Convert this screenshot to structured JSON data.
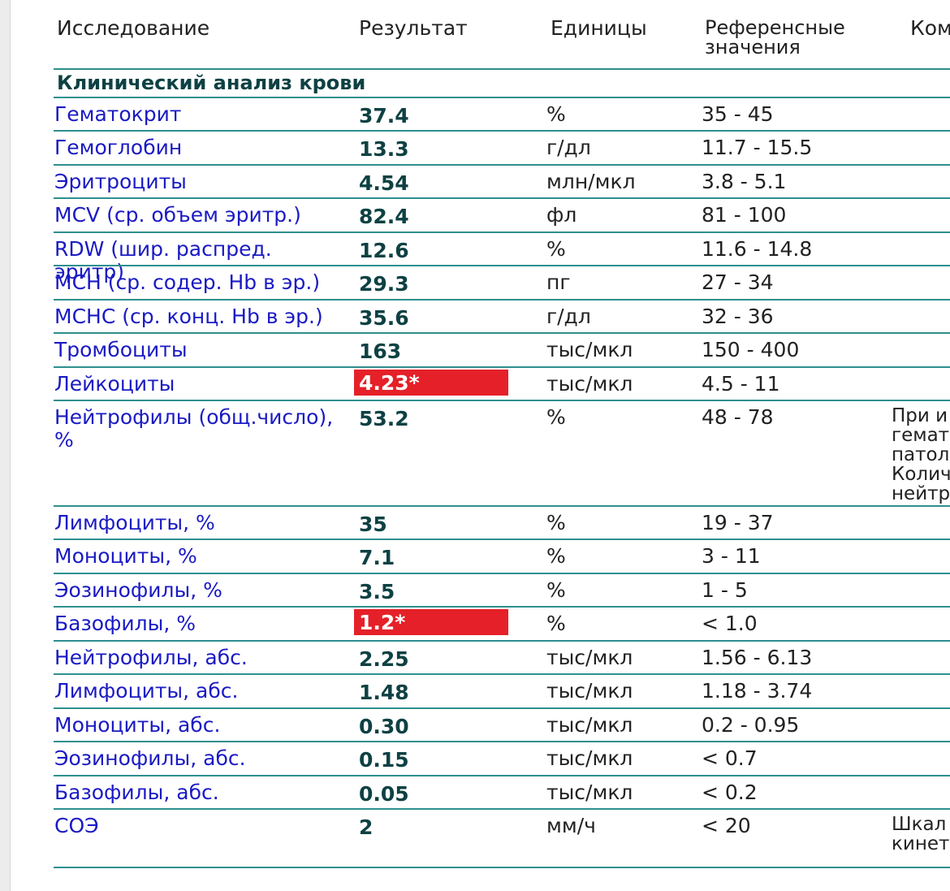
{
  "columns": {
    "study": "Исследование",
    "result": "Результат",
    "units": "Единицы",
    "reference_line1": "Референсные",
    "reference_line2": "значения",
    "comment": "Ком"
  },
  "section_title": "Клинический анализ крови",
  "rows": [
    {
      "name": "Гематокрит",
      "value": "37.4",
      "unit": "%",
      "ref": "35 - 45",
      "comment": "",
      "flag": false
    },
    {
      "name": "Гемоглобин",
      "value": "13.3",
      "unit": "г/дл",
      "ref": "11.7 - 15.5",
      "comment": "",
      "flag": false
    },
    {
      "name": "Эритроциты",
      "value": "4.54",
      "unit": "млн/мкл",
      "ref": "3.8 - 5.1",
      "comment": "",
      "flag": false
    },
    {
      "name": "MCV (ср. объем эритр.)",
      "value": "82.4",
      "unit": "фл",
      "ref": "81 - 100",
      "comment": "",
      "flag": false
    },
    {
      "name": "RDW (шир. распред. эритр)",
      "value": "12.6",
      "unit": "%",
      "ref": "11.6 - 14.8",
      "comment": "",
      "flag": false
    },
    {
      "name": "MCH (ср. содер. Hb в эр.)",
      "value": "29.3",
      "unit": "пг",
      "ref": "27 - 34",
      "comment": "",
      "flag": false
    },
    {
      "name": "MCHC (ср. конц. Hb в эр.)",
      "value": "35.6",
      "unit": "г/дл",
      "ref": "32 - 36",
      "comment": "",
      "flag": false
    },
    {
      "name": "Тромбоциты",
      "value": "163",
      "unit": "тыс/мкл",
      "ref": "150 - 400",
      "comment": "",
      "flag": false
    },
    {
      "name": "Лейкоциты",
      "value": "4.23*",
      "unit": "тыс/мкл",
      "ref": "4.5 - 11",
      "comment": "",
      "flag": true
    },
    {
      "name": "Нейтрофилы (общ.число), %",
      "value": "53.2",
      "unit": "%",
      "ref": "48 - 78",
      "comment": "При и\nгемат\nпатол\nКолич\nнейтр",
      "flag": false
    },
    {
      "name": "Лимфоциты, %",
      "value": "35",
      "unit": "%",
      "ref": "19 - 37",
      "comment": "",
      "flag": false
    },
    {
      "name": "Моноциты, %",
      "value": "7.1",
      "unit": "%",
      "ref": "3 - 11",
      "comment": "",
      "flag": false
    },
    {
      "name": "Эозинофилы, %",
      "value": "3.5",
      "unit": "%",
      "ref": "1 - 5",
      "comment": "",
      "flag": false
    },
    {
      "name": "Базофилы, %",
      "value": "1.2*",
      "unit": "%",
      "ref": "< 1.0",
      "comment": "",
      "flag": true
    },
    {
      "name": "Нейтрофилы, абс.",
      "value": "2.25",
      "unit": "тыс/мкл",
      "ref": "1.56 - 6.13",
      "comment": "",
      "flag": false
    },
    {
      "name": "Лимфоциты, абс.",
      "value": "1.48",
      "unit": "тыс/мкл",
      "ref": "1.18 - 3.74",
      "comment": "",
      "flag": false
    },
    {
      "name": "Моноциты, абс.",
      "value": "0.30",
      "unit": "тыс/мкл",
      "ref": "0.2 - 0.95",
      "comment": "",
      "flag": false
    },
    {
      "name": "Эозинофилы, абс.",
      "value": "0.15",
      "unit": "тыс/мкл",
      "ref": "< 0.7",
      "comment": "",
      "flag": false
    },
    {
      "name": "Базофилы, абс.",
      "value": "0.05",
      "unit": "тыс/мкл",
      "ref": "< 0.2",
      "comment": "",
      "flag": false
    },
    {
      "name": "СОЭ",
      "value": "2",
      "unit": "мм/ч",
      "ref": "< 20",
      "comment": "Шкал\nкинет",
      "flag": false
    }
  ],
  "colors": {
    "rule": "#2e8f8f",
    "name_text": "#1a1ac4",
    "value_text": "#0e4143",
    "flag_background": "#e52028"
  }
}
